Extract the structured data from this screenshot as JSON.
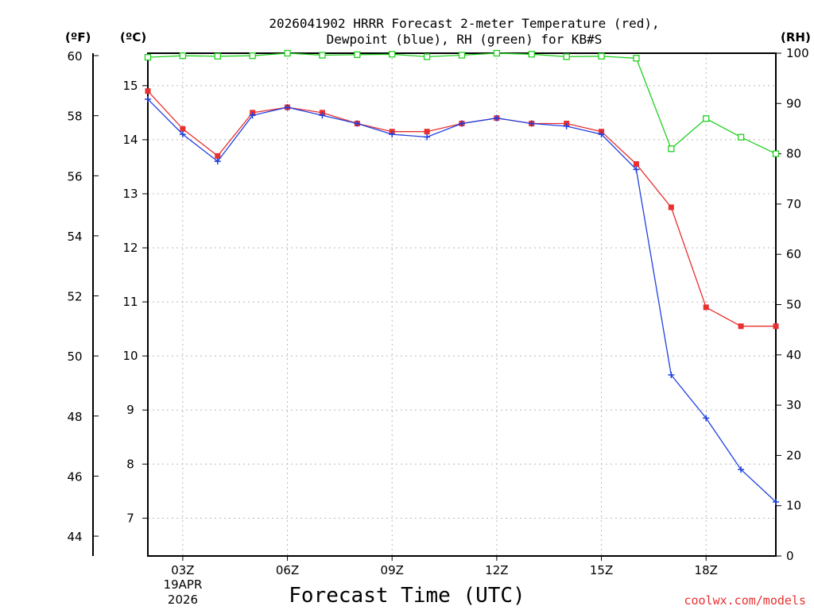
{
  "chart_data": {
    "type": "line",
    "title": "2026041902 HRRR Forecast 2-meter Temperature (red),",
    "subtitle": "Dewpoint (blue), RH (green) for KB#S",
    "xlabel": "Forecast Time (UTC)",
    "date_labels": [
      "19APR",
      "2026"
    ],
    "credit": "coolwx.com/models",
    "unit_labels": {
      "fahrenheit": "(ºF)",
      "celsius": "(ºC)",
      "rh": "(RH)"
    },
    "x_hours": [
      2,
      3,
      4,
      5,
      6,
      7,
      8,
      9,
      10,
      11,
      12,
      13,
      14,
      15,
      16,
      17,
      18,
      19,
      20
    ],
    "x_ticks": [
      {
        "hour": 3,
        "label": "03Z"
      },
      {
        "hour": 6,
        "label": "06Z"
      },
      {
        "hour": 9,
        "label": "09Z"
      },
      {
        "hour": 12,
        "label": "12Z"
      },
      {
        "hour": 15,
        "label": "15Z"
      },
      {
        "hour": 18,
        "label": "18Z"
      }
    ],
    "xlim": [
      2,
      20
    ],
    "celsius_range": [
      6.3,
      15.6
    ],
    "celsius_ticks": [
      "7",
      "8",
      "9",
      "10",
      "11",
      "12",
      "13",
      "14",
      "15"
    ],
    "fahrenheit_ticks": [
      "44",
      "46",
      "48",
      "50",
      "52",
      "54",
      "56",
      "58",
      "60"
    ],
    "rh_range": [
      0,
      100
    ],
    "rh_ticks": [
      "0",
      "10",
      "20",
      "30",
      "40",
      "50",
      "60",
      "70",
      "80",
      "90",
      "100"
    ],
    "series": [
      {
        "name": "Temperature",
        "color": "#e83030",
        "marker": "square",
        "axis": "celsius",
        "values": [
          14.9,
          14.2,
          13.7,
          14.5,
          14.6,
          14.5,
          14.3,
          14.15,
          14.15,
          14.3,
          14.4,
          14.3,
          14.3,
          14.15,
          13.55,
          12.75,
          10.9,
          10.55,
          10.55
        ]
      },
      {
        "name": "Dewpoint",
        "color": "#2040e0",
        "marker": "plus",
        "axis": "celsius",
        "values": [
          14.75,
          14.1,
          13.6,
          14.45,
          14.6,
          14.45,
          14.3,
          14.1,
          14.05,
          14.3,
          14.4,
          14.3,
          14.25,
          14.1,
          13.45,
          9.65,
          8.85,
          7.9,
          7.3
        ]
      },
      {
        "name": "RH",
        "color": "#20d020",
        "marker": "open-square",
        "axis": "rh",
        "values": [
          99.2,
          99.5,
          99.4,
          99.5,
          100,
          99.6,
          99.7,
          99.8,
          99.3,
          99.6,
          100,
          99.8,
          99.3,
          99.4,
          99.0,
          81.0,
          87.0,
          83.3,
          80.0
        ]
      }
    ]
  }
}
